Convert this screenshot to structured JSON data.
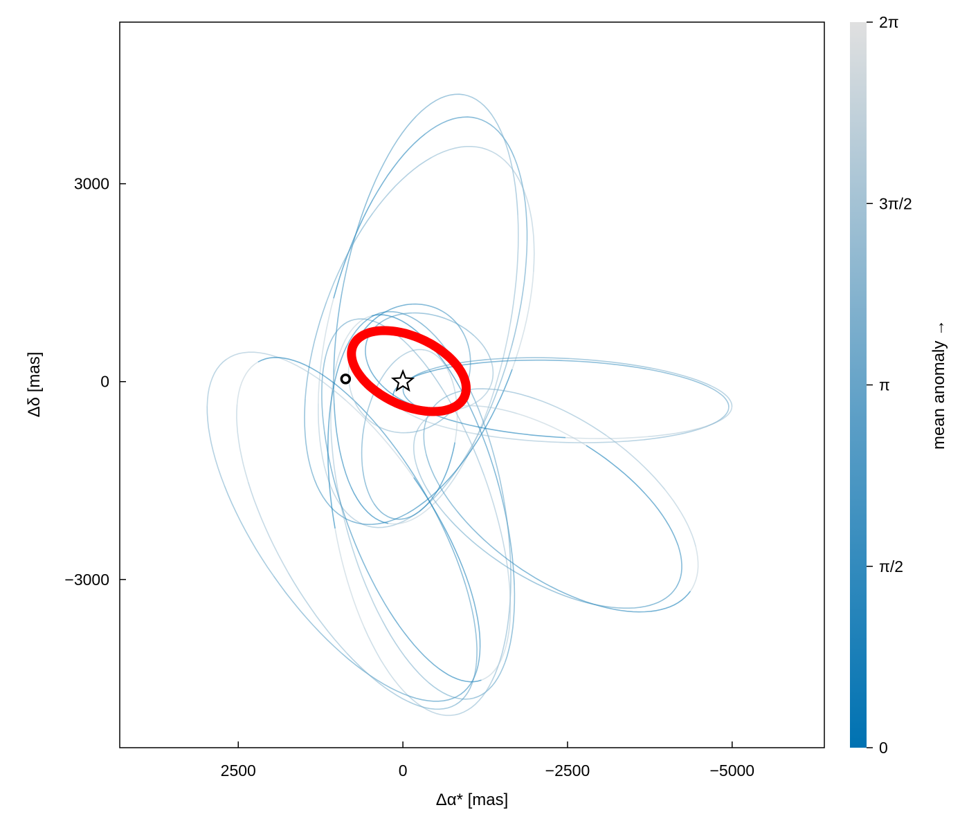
{
  "chart_data": {
    "type": "line",
    "title": "",
    "xlabel": "Δα* [mas]",
    "ylabel": "Δδ [mas]",
    "xlim": [
      4300,
      -6400
    ],
    "ylim": [
      -5550,
      5450
    ],
    "x_ticks": [
      2500,
      0,
      -2500,
      -5000
    ],
    "x_tick_labels": [
      "2500",
      "0",
      "−2500",
      "−5000"
    ],
    "y_ticks": [
      3000,
      0,
      -3000
    ],
    "y_tick_labels": [
      "3000",
      "0",
      "−3000"
    ],
    "grid": false,
    "colorbar": {
      "label": "mean anomaly →",
      "ticks": [
        0,
        1.5708,
        3.1416,
        4.7124,
        6.2832
      ],
      "tick_labels": [
        "0",
        "π/2",
        "π",
        "3π/2",
        "2π"
      ],
      "color_low": "#0072b2",
      "color_high": "#e0e0e0"
    },
    "series": [
      {
        "kind": "orbit-sample-ensemble",
        "color": "#0072b2",
        "note_values": "representative posterior orbit ellipses in data units",
        "orbits": [
          {
            "center": [
              -300,
              900
            ],
            "axes": [
              1400,
              3200
            ],
            "rotation_deg": 15
          },
          {
            "center": [
              -350,
              1100
            ],
            "axes": [
              1300,
              3300
            ],
            "rotation_deg": 10
          },
          {
            "center": [
              -250,
              700
            ],
            "axes": [
              1500,
              3000
            ],
            "rotation_deg": 20
          },
          {
            "center": [
              -300,
              -1900
            ],
            "axes": [
              1200,
              3000
            ],
            "rotation_deg": -15
          },
          {
            "center": [
              -250,
              -2000
            ],
            "axes": [
              1300,
              3100
            ],
            "rotation_deg": -10
          },
          {
            "center": [
              -200,
              -1800
            ],
            "axes": [
              1100,
              2900
            ],
            "rotation_deg": -20
          },
          {
            "center": [
              900,
              -2200
            ],
            "axes": [
              1300,
              3100
            ],
            "rotation_deg": -35
          },
          {
            "center": [
              700,
              -2300
            ],
            "axes": [
              1200,
              3000
            ],
            "rotation_deg": -30
          },
          {
            "center": [
              -2400,
              -300
            ],
            "axes": [
              2550,
              620
            ],
            "rotation_deg": 2
          },
          {
            "center": [
              -2500,
              -250
            ],
            "axes": [
              2500,
              600
            ],
            "rotation_deg": 3
          },
          {
            "center": [
              -2400,
              -1800
            ],
            "axes": [
              2400,
              1200
            ],
            "rotation_deg": 35
          },
          {
            "center": [
              -2200,
              -1900
            ],
            "axes": [
              2300,
              1100
            ],
            "rotation_deg": 32
          },
          {
            "center": [
              -100,
              200
            ],
            "axes": [
              900,
              1000
            ],
            "rotation_deg": 30
          },
          {
            "center": [
              -400,
              300
            ],
            "axes": [
              1000,
              700
            ],
            "rotation_deg": 20
          },
          {
            "center": [
              -100,
              -800
            ],
            "axes": [
              700,
              1300
            ],
            "rotation_deg": 10
          }
        ]
      },
      {
        "kind": "highlighted-orbit",
        "color": "#ff0000",
        "center": [
          -90,
          160
        ],
        "axes": [
          930,
          520
        ],
        "rotation_deg": 25
      }
    ],
    "points": [
      {
        "name": "host star",
        "x": 0,
        "y": 0,
        "marker": "star"
      },
      {
        "name": "planet position",
        "x": 870,
        "y": 40,
        "marker": "circle"
      }
    ]
  }
}
